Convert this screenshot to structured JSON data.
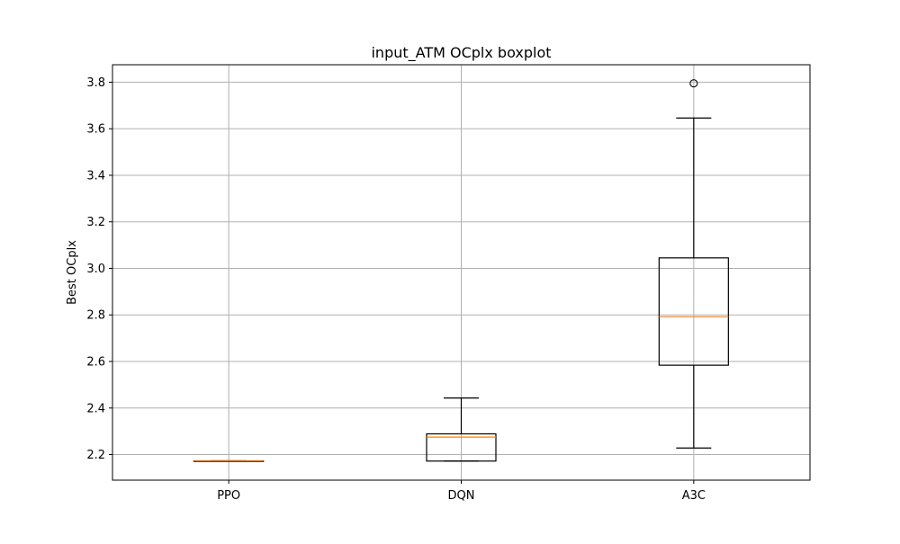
{
  "chart_data": {
    "type": "boxplot",
    "title": "input_ATM OCplx boxplot",
    "xlabel": "",
    "ylabel": "Best OCplx",
    "ylim": [
      2.09,
      3.875
    ],
    "yticks": [
      2.2,
      2.4,
      2.6,
      2.8,
      3.0,
      3.2,
      3.4,
      3.6,
      3.8
    ],
    "ytick_labels": [
      "2.2",
      "2.4",
      "2.6",
      "2.8",
      "3.0",
      "3.2",
      "3.4",
      "3.6",
      "3.8"
    ],
    "grid": true,
    "categories": [
      "PPO",
      "DQN",
      "A3C"
    ],
    "boxes": [
      {
        "label": "PPO",
        "whisker_low": 2.172,
        "q1": 2.172,
        "median": 2.172,
        "q3": 2.173,
        "whisker_high": 2.173,
        "outliers": []
      },
      {
        "label": "DQN",
        "whisker_low": 2.172,
        "q1": 2.172,
        "median": 2.275,
        "q3": 2.289,
        "whisker_high": 2.443,
        "outliers": []
      },
      {
        "label": "A3C",
        "whisker_low": 2.228,
        "q1": 2.584,
        "median": 2.792,
        "q3": 3.045,
        "whisker_high": 3.646,
        "outliers": [
          3.795
        ]
      }
    ],
    "colors": {
      "box": "#000000",
      "median": "#ff7f0e",
      "grid": "#b0b0b0",
      "outlier": "#000000"
    }
  }
}
